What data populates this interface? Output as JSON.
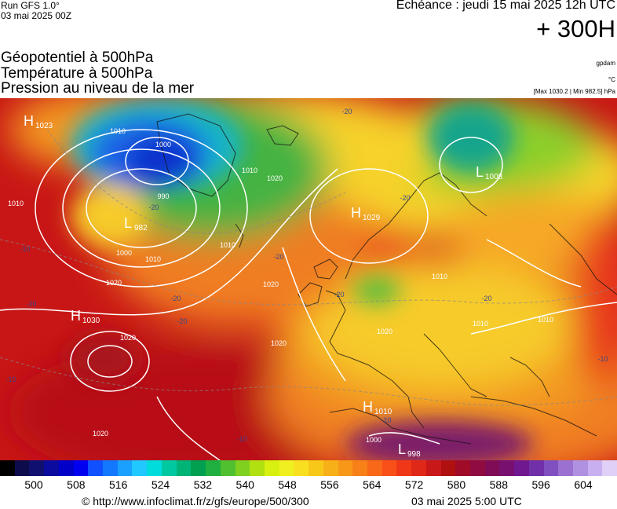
{
  "header": {
    "run_label": "Run GFS 1.0°",
    "run_date": "03 mai 2025 00Z",
    "echeance": "Echéance : jeudi 15 mai 2025 12h UTC",
    "lead_time": "+ 300H"
  },
  "parameters": {
    "line1": "Géopotentiel à 500hPa",
    "line2": "Température à 500hPa",
    "line3": "Pression au niveau de la mer",
    "unit_geopotential": "gpdam",
    "unit_temperature": "°C",
    "pressure_range": "[Max 1030.2 | Min 982.5] hPa"
  },
  "map": {
    "pressure_centers": [
      {
        "letter": "H",
        "value": "1023"
      },
      {
        "letter": "L",
        "value": "982"
      },
      {
        "letter": "H",
        "value": "1030"
      },
      {
        "letter": "H",
        "value": "1029"
      },
      {
        "letter": "L",
        "value": "1008"
      },
      {
        "letter": "H",
        "value": "1010"
      },
      {
        "letter": "L",
        "value": "998"
      }
    ],
    "isobar_labels": [
      "1010",
      "1000",
      "990",
      "1010",
      "1000",
      "1010",
      "1020",
      "1010",
      "1020",
      "1020",
      "1020",
      "1020",
      "1020",
      "1010",
      "1010",
      "1000",
      "1020",
      "1010",
      "1010"
    ],
    "temperature_labels": [
      "-20",
      "-20",
      "-20",
      "-10",
      "-20",
      "-20",
      "-20",
      "-20",
      "-10",
      "-10",
      "-10",
      "-10",
      "-20",
      "-20"
    ],
    "colors": {
      "warm_red": "#d7191c",
      "orange": "#f48b24",
      "yellow": "#f6d92a",
      "green": "#38b34a",
      "blue": "#1e3cd2",
      "purple": "#5a2a8c"
    }
  },
  "scale": {
    "colors": [
      "#000000",
      "#0c0c4a",
      "#101070",
      "#0b0ba0",
      "#0000c8",
      "#0000f0",
      "#1050ff",
      "#1478ff",
      "#1aa0ff",
      "#20c8ff",
      "#00dcdc",
      "#00c8a0",
      "#00b478",
      "#00a050",
      "#20b040",
      "#50c030",
      "#80d020",
      "#b0e010",
      "#d8f010",
      "#f0f020",
      "#f8e020",
      "#f8c818",
      "#f8b018",
      "#f89818",
      "#f88018",
      "#f86818",
      "#f85018",
      "#f03818",
      "#e02818",
      "#c81818",
      "#b01010",
      "#a00c28",
      "#900c40",
      "#800c58",
      "#781070",
      "#701890",
      "#7030a8",
      "#8050c0",
      "#9a70d0",
      "#b090e0",
      "#c8b0f0",
      "#e0d0f8"
    ],
    "labels": [
      "500",
      "508",
      "516",
      "524",
      "532",
      "540",
      "548",
      "556",
      "564",
      "572",
      "580",
      "588",
      "596",
      "604"
    ]
  },
  "footer": {
    "url": "© http://www.infoclimat.fr/z/gfs/europe/500/300",
    "generated": "03 mai 2025  5:00 UTC"
  }
}
